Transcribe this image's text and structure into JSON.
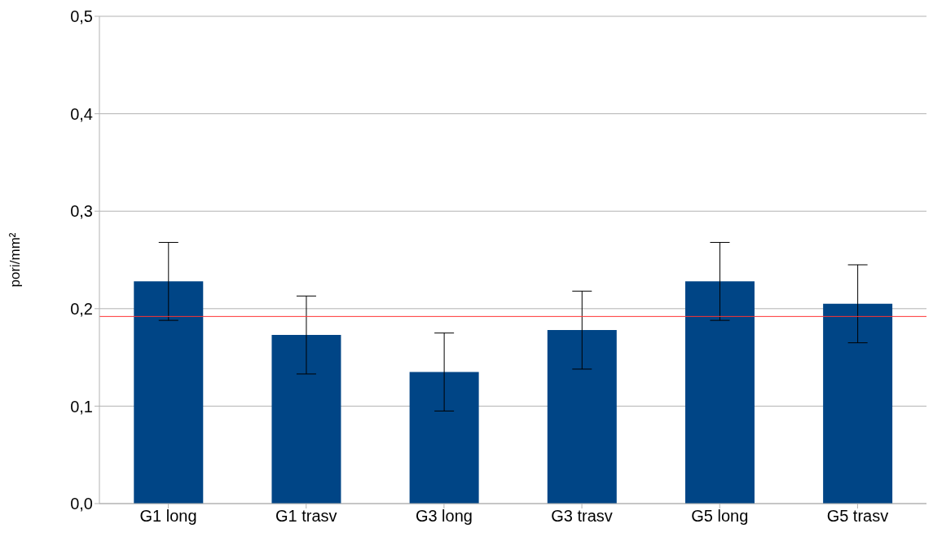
{
  "chart_data": {
    "type": "bar",
    "ylabel": "pori/mm²",
    "categories": [
      "G1 long",
      "G1 trasv",
      "G3 long",
      "G3 trasv",
      "G5 long",
      "G5 trasv"
    ],
    "values": [
      0.228,
      0.173,
      0.135,
      0.178,
      0.228,
      0.205
    ],
    "errors": [
      0.04,
      0.04,
      0.04,
      0.04,
      0.04,
      0.04
    ],
    "color": "#004586",
    "ylim": [
      0,
      0.5
    ],
    "yticks": [
      {
        "value": 0,
        "label": "0,0"
      },
      {
        "value": 0.1,
        "label": "0,1"
      },
      {
        "value": 0.2,
        "label": "0,2"
      },
      {
        "value": 0.3,
        "label": "0,3"
      },
      {
        "value": 0.4,
        "label": "0,4"
      },
      {
        "value": 0.5,
        "label": "0,5"
      }
    ],
    "grid": "y",
    "ref_lines": [
      {
        "axis": "y",
        "value": 0.192,
        "label": null,
        "color": "#ff3333"
      }
    ]
  }
}
